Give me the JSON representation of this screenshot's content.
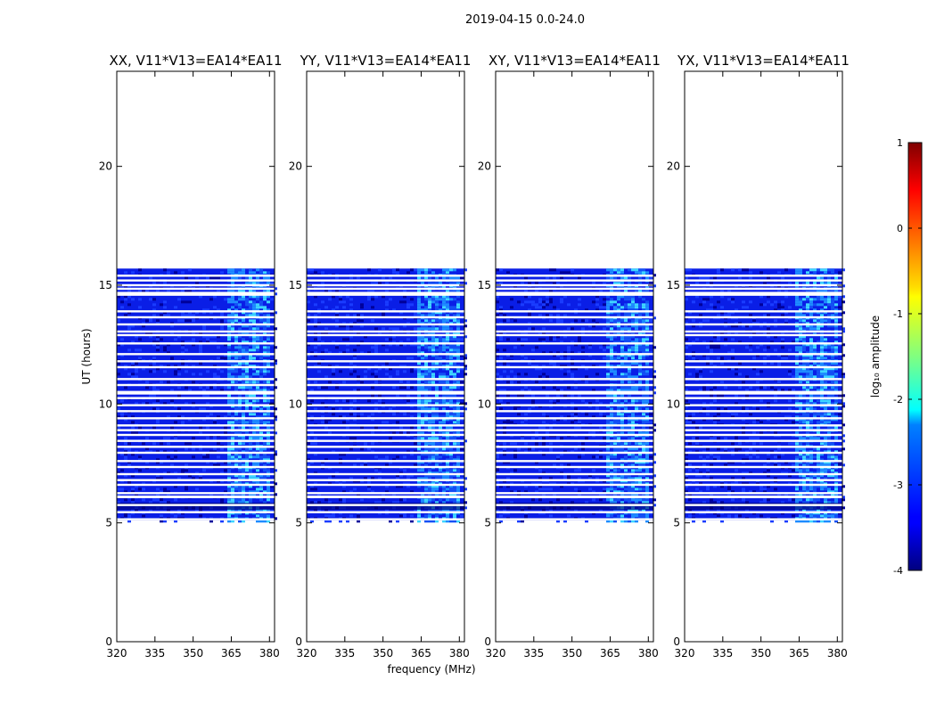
{
  "suptitle": "2019-04-15 0.0-24.0",
  "chart_data": {
    "type": "heatmap",
    "xlabel": "frequency (MHz)",
    "ylabel": "UT (hours)",
    "xlim": [
      320,
      382
    ],
    "ylim": [
      0,
      24
    ],
    "xticks": [
      320,
      335,
      350,
      365,
      380
    ],
    "yticks": [
      0,
      5,
      10,
      15,
      20
    ],
    "data_time_range": [
      5.1,
      15.7
    ],
    "rfi_band_mhz": [
      363,
      380
    ],
    "panels": [
      {
        "title": "XX, V11*V13=EA14*EA11",
        "pol": "XX"
      },
      {
        "title": "YY, V11*V13=EA14*EA11",
        "pol": "YY"
      },
      {
        "title": "XY, V11*V13=EA14*EA11",
        "pol": "XY"
      },
      {
        "title": "YX, V11*V13=EA14*EA11",
        "pol": "YX"
      }
    ],
    "flagged_gaps_hours": [
      5.15,
      5.45,
      5.75,
      6.1,
      6.25,
      6.6,
      6.8,
      7.05,
      7.35,
      7.6,
      7.95,
      8.2,
      8.45,
      8.7,
      8.9,
      9.1,
      9.4,
      9.7,
      9.95,
      10.25,
      10.5,
      10.8,
      11.05,
      11.55,
      11.8,
      12.1,
      12.55,
      12.9,
      13.05,
      13.35,
      13.65,
      13.9,
      14.6,
      14.85,
      15.0,
      15.2,
      15.4
    ],
    "colorbar": {
      "label": "log₁₀ amplitude",
      "range": [
        -4,
        1
      ],
      "ticks": [
        1,
        0,
        -1,
        -2,
        -3,
        -4
      ],
      "colormap": "jet"
    }
  }
}
